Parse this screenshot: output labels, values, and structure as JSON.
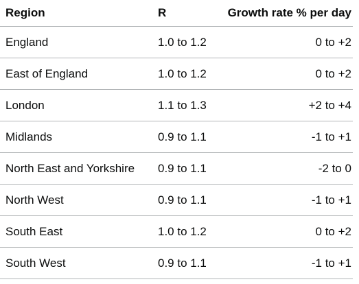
{
  "table": {
    "headers": {
      "region": "Region",
      "r": "R",
      "growth": "Growth rate % per day"
    },
    "rows": [
      {
        "region": "England",
        "r": "1.0 to 1.2",
        "growth": "0 to +2"
      },
      {
        "region": "East of England",
        "r": "1.0 to 1.2",
        "growth": "0 to +2"
      },
      {
        "region": "London",
        "r": "1.1 to 1.3",
        "growth": "+2 to +4"
      },
      {
        "region": "Midlands",
        "r": "0.9 to 1.1",
        "growth": "-1 to +1"
      },
      {
        "region": "North East and Yorkshire",
        "r": "0.9 to 1.1",
        "growth": "-2 to 0"
      },
      {
        "region": "North West",
        "r": "0.9 to 1.1",
        "growth": "-1 to +1"
      },
      {
        "region": "South East",
        "r": "1.0 to 1.2",
        "growth": "0 to +2"
      },
      {
        "region": "South West",
        "r": "0.9 to 1.1",
        "growth": "-1 to +1"
      }
    ]
  }
}
